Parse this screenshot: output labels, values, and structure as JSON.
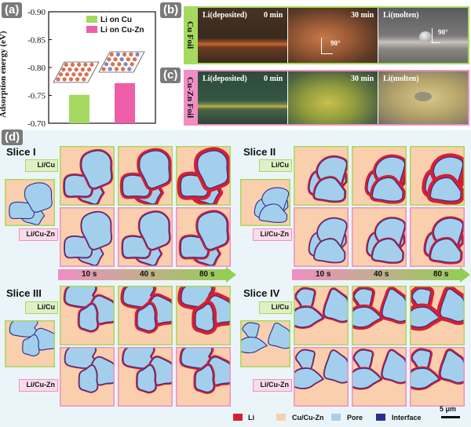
{
  "panels": {
    "a": "(a)",
    "b": "(b)",
    "c": "(c)",
    "d": "(d)"
  },
  "chart_data": {
    "type": "bar",
    "ylabel": "Adsorption energy (eV)",
    "ylim": [
      -0.7,
      -0.9
    ],
    "ticks": [
      "-0.90",
      "-0.85",
      "-0.80",
      "-0.75",
      "-0.70"
    ],
    "tick_values": [
      -0.9,
      -0.85,
      -0.8,
      -0.75,
      -0.7
    ],
    "series": [
      {
        "name": "Li on Cu",
        "value": -0.751,
        "color": "#a6d95f"
      },
      {
        "name": "Li on Cu-Zn",
        "value": -0.772,
        "color": "#ef5ea8"
      }
    ]
  },
  "photos": {
    "cu_foil_label": "Cu Foil",
    "cuzn_foil_label": "Cu-Zn Foil",
    "cu_row": [
      {
        "title": "Li(deposited)",
        "time": "0 min"
      },
      {
        "title": "",
        "time": "30 min",
        "angle": "90°"
      },
      {
        "title": "Li(molten)",
        "time": "",
        "angle": "90°"
      }
    ],
    "cuzn_row": [
      {
        "title": "Li(deposited)",
        "time": "0 min"
      },
      {
        "title": "",
        "time": "30 min"
      },
      {
        "title": "Li(molten)",
        "time": ""
      }
    ]
  },
  "slices": [
    {
      "title": "Slice I",
      "top_tag": "Li/Cu",
      "bottom_tag": "Li/Cu-Zn"
    },
    {
      "title": "Slice II",
      "top_tag": "Li/Cu",
      "bottom_tag": "Li/Cu-Zn"
    },
    {
      "title": "Slice III",
      "top_tag": "Li/Cu",
      "bottom_tag": "Li/Cu-Zn"
    },
    {
      "title": "Slice IV",
      "top_tag": "Li/Cu",
      "bottom_tag": "Li/Cu-Zn"
    }
  ],
  "times": [
    "10 s",
    "40 s",
    "80 s"
  ],
  "legend": [
    {
      "label": "Li",
      "color": "#d91e2e"
    },
    {
      "label": "Cu/Cu-Zn",
      "color": "#f9cfae"
    },
    {
      "label": "Pore",
      "color": "#a3cfec"
    },
    {
      "label": "Interface",
      "color": "#2b2f8f"
    }
  ],
  "scale_bar": "5 μm",
  "colors": {
    "green_border": "#a6d95f",
    "pink_border": "#ef8fc4",
    "matrix": "#f9cfae",
    "pore": "#a3cfec",
    "li": "#d91e2e",
    "interface": "#2b2f8f"
  }
}
